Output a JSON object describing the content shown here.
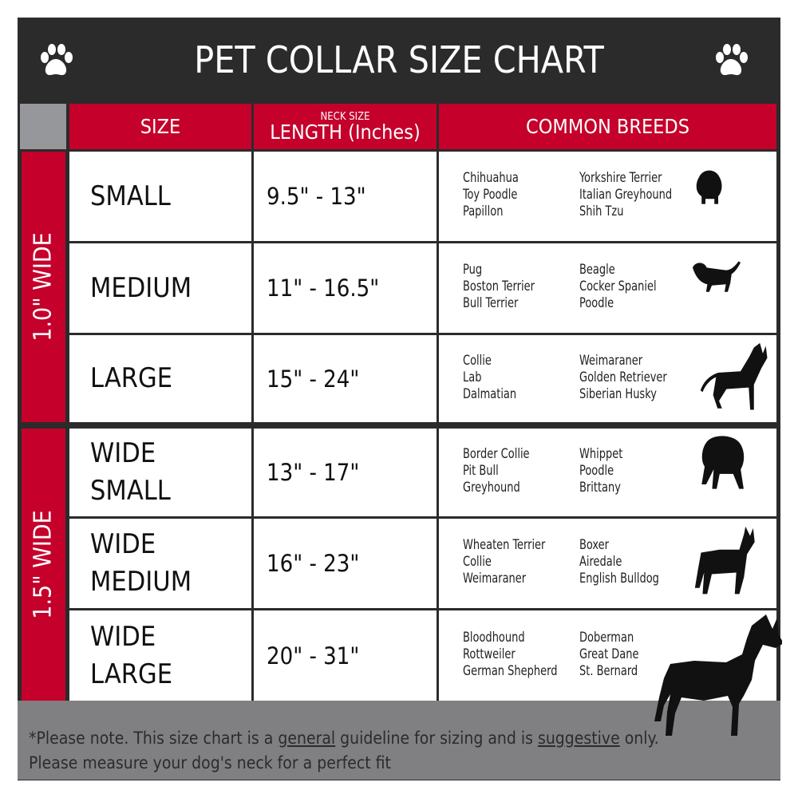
{
  "title": "PET COLLAR SIZE CHART",
  "headers": {
    "size": "SIZE",
    "length_small": "NECK SIZE",
    "length": "LENGTH (Inches)",
    "breeds": "COMMON BREEDS"
  },
  "groups": [
    {
      "label": "1.0\" WIDE"
    },
    {
      "label": "1.5\" WIDE"
    }
  ],
  "rows": [
    {
      "size": [
        "SMALL"
      ],
      "length": "9.5\" - 13\"",
      "breeds1": [
        "Chihuahua",
        "Toy Poodle",
        "Papillon"
      ],
      "breeds2": [
        "Yorkshire Terrier",
        "Italian Greyhound",
        "Shih Tzu"
      ]
    },
    {
      "size": [
        "MEDIUM"
      ],
      "length": "11\" - 16.5\"",
      "breeds1": [
        "Pug",
        "Boston Terrier",
        "Bull Terrier"
      ],
      "breeds2": [
        "Beagle",
        "Cocker Spaniel",
        "Poodle"
      ]
    },
    {
      "size": [
        "LARGE"
      ],
      "length": "15\" - 24\"",
      "breeds1": [
        "Collie",
        "Lab",
        "Dalmatian"
      ],
      "breeds2": [
        "Weimaraner",
        "Golden Retriever",
        "Siberian Husky"
      ]
    },
    {
      "size": [
        "WIDE",
        "SMALL"
      ],
      "length": "13\" - 17\"",
      "breeds1": [
        "Border Collie",
        "Pit Bull",
        "Greyhound"
      ],
      "breeds2": [
        "Whippet",
        "Poodle",
        "Brittany"
      ]
    },
    {
      "size": [
        "WIDE",
        "MEDIUM"
      ],
      "length": "16\" - 23\"",
      "breeds1": [
        "Wheaten Terrier",
        "Collie",
        "Weimaraner"
      ],
      "breeds2": [
        "Boxer",
        "Airedale",
        "English Bulldog"
      ]
    },
    {
      "size": [
        "WIDE",
        "LARGE"
      ],
      "length": "20\" - 31\"",
      "breeds1": [
        "Bloodhound",
        "Rottweiler",
        "German Shepherd"
      ],
      "breeds2": [
        "Doberman",
        "Great Dane",
        "St. Bernard"
      ]
    }
  ],
  "footer": {
    "p1": "*Please note. This size chart is a ",
    "u1": "general",
    "p2": " guideline for sizing and is ",
    "u2": "suggestive",
    "p3": " only.",
    "line2": "Please measure your dog's neck for a perfect fit"
  },
  "colors": {
    "red": "#c4002b",
    "dark": "#2b2b2b",
    "gray": "#808083"
  },
  "icons": [
    "paw-icon",
    "dog-silhouette-icon"
  ]
}
